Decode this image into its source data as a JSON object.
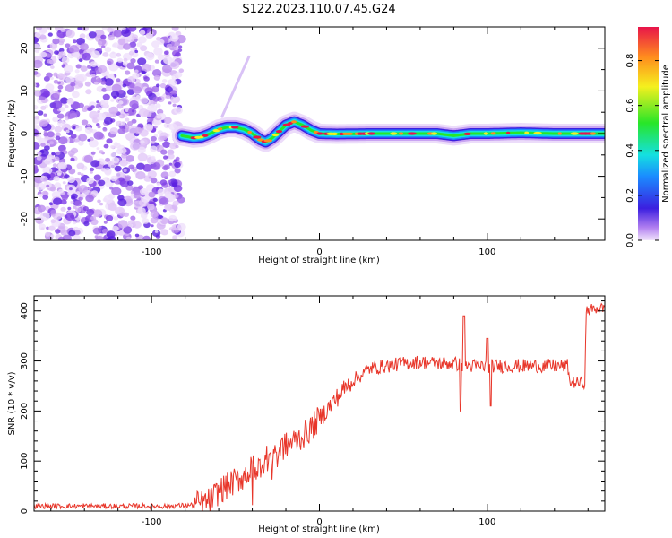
{
  "title": "S122.2023.110.07.45.G24",
  "colors": {
    "snr_line": "#e8362a",
    "spectrum_cmap": "rainbow (purple-blue-cyan-green-yellow-red)"
  },
  "chart_data": [
    {
      "type": "heatmap",
      "xlabel": "Height of straight line (km)",
      "ylabel": "Frequency (Hz)",
      "colorbar_label": "Normalized spectral amplitude",
      "xlim": [
        -170,
        170
      ],
      "ylim": [
        -25,
        25
      ],
      "x_ticks": [
        -100,
        0,
        100
      ],
      "x_tick_labels": [
        "-100",
        "0",
        "100"
      ],
      "y_ticks": [
        -20,
        -10,
        0,
        10,
        20
      ],
      "y_tick_labels": [
        "-20",
        "-10",
        "0",
        "10",
        "20"
      ],
      "colorbar_ticks": [
        0.0,
        0.2,
        0.4,
        0.6,
        0.8
      ],
      "colorbar_tick_labels": [
        "0.0",
        "0.2",
        "0.4",
        "0.6",
        "0.8"
      ],
      "noise_region_x": [
        -170,
        -82
      ],
      "ridge": {
        "x": [
          -82,
          -75,
          -70,
          -65,
          -60,
          -55,
          -50,
          -45,
          -40,
          -35,
          -32,
          -28,
          -24,
          -20,
          -15,
          -10,
          -5,
          0,
          10,
          30,
          50,
          70,
          80,
          90,
          100,
          120,
          140,
          160,
          170
        ],
        "freq": [
          -0.5,
          -1,
          -0.8,
          0,
          1,
          1.5,
          1.5,
          1,
          0,
          -1.5,
          -2,
          -1,
          0.5,
          2,
          2.8,
          2,
          0.8,
          0,
          -0.1,
          0,
          0,
          0,
          -0.5,
          0,
          0,
          0.2,
          0,
          0,
          0
        ]
      }
    },
    {
      "type": "line",
      "xlabel": "Height of straight line (km)",
      "ylabel": "SNR (10 * v/v)",
      "xlim": [
        -170,
        170
      ],
      "ylim": [
        0,
        430
      ],
      "x_ticks": [
        -100,
        0,
        100
      ],
      "x_tick_labels": [
        "-100",
        "0",
        "100"
      ],
      "y_ticks": [
        0,
        100,
        200,
        300,
        400
      ],
      "y_tick_labels": [
        "0",
        "100",
        "200",
        "300",
        "400"
      ],
      "series": [
        {
          "x": [
            -170,
            -150,
            -130,
            -110,
            -90,
            -75,
            -70,
            -65,
            -60,
            -55,
            -50,
            -45,
            -40,
            -35,
            -30,
            -25,
            -20,
            -15,
            -10,
            -5,
            0,
            5,
            10,
            15,
            20,
            25,
            30,
            40,
            50,
            60,
            70,
            80,
            90,
            100,
            110,
            120,
            130,
            140,
            148,
            149,
            158,
            159,
            165,
            170
          ],
          "y": [
            10,
            10,
            10,
            10,
            10,
            12,
            15,
            20,
            40,
            50,
            60,
            70,
            85,
            95,
            110,
            125,
            130,
            140,
            150,
            165,
            185,
            205,
            225,
            245,
            262,
            272,
            285,
            290,
            295,
            298,
            295,
            295,
            290,
            290,
            290,
            290,
            290,
            290,
            290,
            258,
            255,
            400,
            405,
            405
          ]
        }
      ]
    }
  ]
}
